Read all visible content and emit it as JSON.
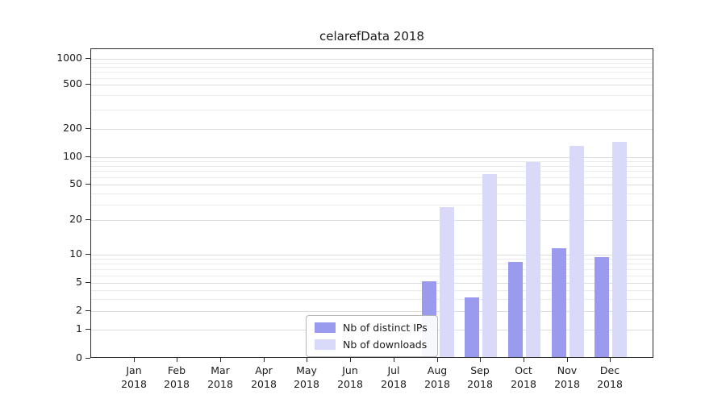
{
  "title": "celarefData 2018",
  "chart_data": {
    "type": "bar",
    "title": "celarefData 2018",
    "xlabel": "",
    "ylabel": "",
    "yscale": "log-with-zero",
    "y_ticks": [
      0,
      1,
      2,
      5,
      10,
      20,
      50,
      100,
      200,
      500,
      1000
    ],
    "ylim": [
      0,
      1300
    ],
    "grid": true,
    "legend_position": "bottom-center-inside",
    "year": "2018",
    "categories": [
      "Jan",
      "Feb",
      "Mar",
      "Apr",
      "May",
      "Jun",
      "Jul",
      "Aug",
      "Sep",
      "Oct",
      "Nov",
      "Dec"
    ],
    "series": [
      {
        "name": "Nb of distinct IPs",
        "color": "#9a9aee",
        "values": [
          0,
          0,
          0,
          0,
          0,
          0,
          0,
          5,
          3,
          8,
          11,
          9
        ]
      },
      {
        "name": "Nb of downloads",
        "color": "#d9d9f9",
        "values": [
          0,
          0,
          0,
          0,
          0,
          0,
          0,
          27,
          62,
          85,
          128,
          140
        ]
      }
    ]
  }
}
